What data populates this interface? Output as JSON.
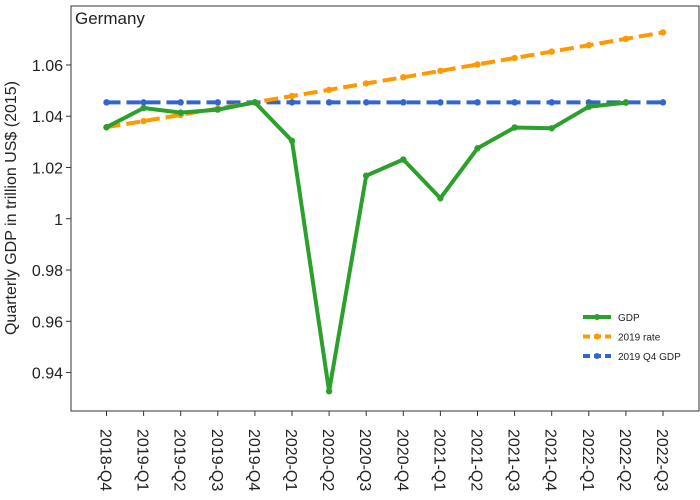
{
  "chart_data": {
    "type": "line",
    "title": "Germany",
    "ylabel": "Quarterly GDP in trillion US$ (2015)",
    "xlabel": "",
    "ylim": [
      0.925,
      1.083
    ],
    "yticks": [
      0.94,
      0.96,
      0.98,
      1,
      1.02,
      1.04,
      1.06
    ],
    "ytick_labels": [
      "0.94",
      "0.96",
      "0.98",
      "1",
      "1.02",
      "1.04",
      "1.06"
    ],
    "categories": [
      "2018-Q4",
      "2019-Q1",
      "2019-Q2",
      "2019-Q3",
      "2019-Q4",
      "2020-Q1",
      "2020-Q2",
      "2020-Q3",
      "2020-Q4",
      "2021-Q1",
      "2021-Q2",
      "2021-Q3",
      "2021-Q4",
      "2022-Q1",
      "2022-Q2",
      "2022-Q3"
    ],
    "legend_position": "bottom-right",
    "grid": false,
    "series": [
      {
        "name": "GDP",
        "color": "#2ca02c",
        "dash": "solid",
        "values": [
          1.0357,
          1.0432,
          1.0414,
          1.0426,
          1.0454,
          1.0304,
          0.9327,
          1.0168,
          1.0231,
          1.008,
          1.0275,
          1.0356,
          1.0353,
          1.0437,
          1.0453,
          null
        ]
      },
      {
        "name": "2019 rate",
        "color": "#ff9900",
        "dash": "dashed",
        "values": [
          1.0357,
          1.0381,
          1.0405,
          1.043,
          1.0454,
          1.0479,
          1.0503,
          1.0528,
          1.0552,
          1.0577,
          1.0602,
          1.0627,
          1.0652,
          1.0677,
          1.0702,
          1.0727
        ]
      },
      {
        "name": "2019 Q4 GDP",
        "color": "#3366cc",
        "dash": "dashed",
        "values": [
          1.0454,
          1.0454,
          1.0454,
          1.0454,
          1.0454,
          1.0454,
          1.0454,
          1.0454,
          1.0454,
          1.0454,
          1.0454,
          1.0454,
          1.0454,
          1.0454,
          1.0454,
          1.0454
        ]
      }
    ]
  }
}
